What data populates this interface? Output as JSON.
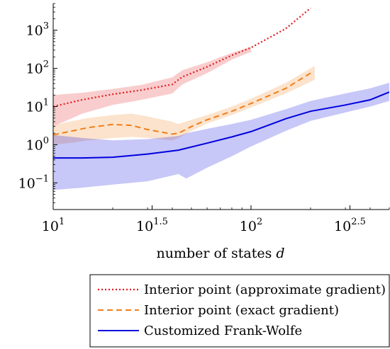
{
  "chart_data": {
    "type": "line",
    "title": "",
    "xlabel": "number of states",
    "xlabel_var": "d",
    "ylabel": "",
    "x_scale": "log",
    "y_scale": "log",
    "xlim": [
      10,
      500
    ],
    "ylim": [
      0.02,
      5000
    ],
    "grid": false,
    "legend_position": "bottom",
    "x_ticks": [
      {
        "value": 10,
        "base": "10",
        "exp": "1"
      },
      {
        "value": 31.62,
        "base": "10",
        "exp": "1.5"
      },
      {
        "value": 100,
        "base": "10",
        "exp": "2"
      },
      {
        "value": 316.2,
        "base": "10",
        "exp": "2.5"
      }
    ],
    "y_ticks": [
      {
        "value": 0.1,
        "base": "10",
        "exp": "−1"
      },
      {
        "value": 1,
        "base": "10",
        "exp": "0"
      },
      {
        "value": 10,
        "base": "10",
        "exp": "1"
      },
      {
        "value": 100,
        "base": "10",
        "exp": "2"
      },
      {
        "value": 1000,
        "base": "10",
        "exp": "3"
      }
    ],
    "series": [
      {
        "name": "Interior point (approximate gradient)",
        "color": "#e31a1c",
        "style": "dotted",
        "x": [
          10,
          14,
          20,
          28,
          40,
          45,
          60,
          80,
          100,
          150,
          200
        ],
        "y": [
          10,
          15,
          21,
          27,
          38,
          60,
          110,
          220,
          350,
          1100,
          3800
        ],
        "band_x": [
          10,
          14,
          20,
          28,
          40,
          45,
          60,
          80,
          100
        ],
        "band_low": [
          3,
          6.5,
          11,
          15,
          22,
          38,
          75,
          170,
          270
        ],
        "band_high": [
          20,
          23,
          29,
          37,
          58,
          90,
          145,
          255,
          370
        ]
      },
      {
        "name": "Interior point (exact gradient)",
        "color": "#f07f1a",
        "style": "dashed",
        "x": [
          10,
          12,
          15,
          20,
          25,
          30,
          40,
          43,
          50,
          60,
          80,
          100,
          150,
          200
        ],
        "y": [
          1.8,
          2.2,
          2.8,
          3.4,
          3.2,
          2.5,
          1.9,
          2.0,
          3.0,
          4.5,
          7.5,
          12,
          30,
          75
        ],
        "band_x": [
          10,
          12,
          15,
          20,
          25,
          30,
          40,
          43,
          50,
          60,
          80,
          100,
          150,
          210
        ],
        "band_low": [
          1.0,
          1.1,
          1.3,
          1.5,
          1.6,
          1.5,
          1.3,
          1.5,
          2.3,
          3.6,
          6.0,
          9.5,
          22,
          50
        ],
        "band_high": [
          3.2,
          4.0,
          5.0,
          6.0,
          6.5,
          5.5,
          4.0,
          3.5,
          4.5,
          6.0,
          10,
          16,
          42,
          115
        ]
      },
      {
        "name": "Customized Frank-Wolfe",
        "color": "#0000dd",
        "style": "solid",
        "x": [
          10,
          14,
          20,
          30,
          43,
          60,
          80,
          100,
          150,
          200,
          300,
          400,
          500
        ],
        "y": [
          0.45,
          0.45,
          0.47,
          0.57,
          0.72,
          1.1,
          1.6,
          2.2,
          4.8,
          7.5,
          11,
          15,
          24
        ],
        "band_x": [
          10,
          14,
          20,
          30,
          43,
          47,
          60,
          80,
          100,
          150,
          200,
          300,
          400,
          500
        ],
        "band_low": [
          0.065,
          0.075,
          0.09,
          0.11,
          0.17,
          0.13,
          0.25,
          0.5,
          0.9,
          2.3,
          4.2,
          7.0,
          10,
          14
        ],
        "band_high": [
          1.8,
          1.5,
          1.3,
          1.4,
          1.7,
          2.0,
          2.6,
          3.5,
          4.5,
          8.5,
          14,
          22,
          30,
          42
        ]
      }
    ]
  }
}
